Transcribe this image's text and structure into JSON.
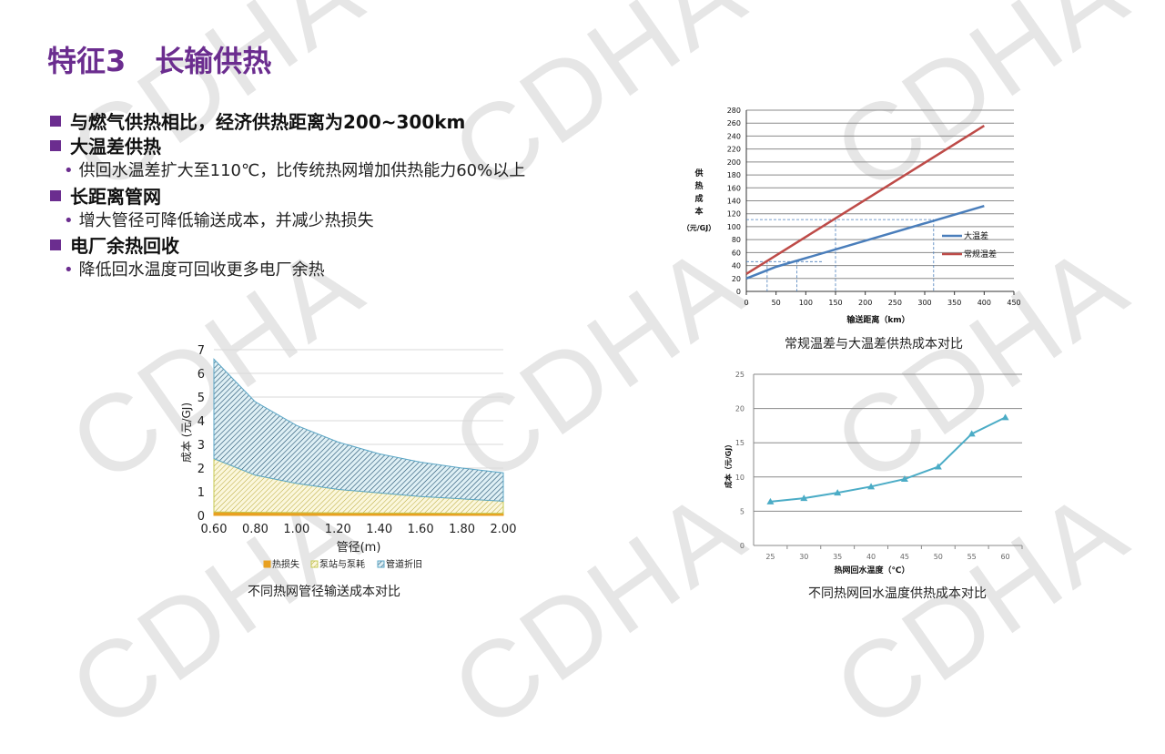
{
  "watermark": "CDHA",
  "title": "特征3　长输供热",
  "bullets": [
    {
      "text": "与燃气供热相比，经济供热距离为200~300km",
      "subs": []
    },
    {
      "text": "大温差供热",
      "subs": [
        "供回水温差扩大至110℃，比传统热网增加供热能力60%以上"
      ]
    },
    {
      "text": "长距离管网",
      "subs": [
        "增大管径可降低输送成本，并减少热损失"
      ]
    },
    {
      "text": "电厂余热回收",
      "subs": [
        "降低回水温度可回收更多电厂余热"
      ]
    }
  ],
  "colors": {
    "accent": "#6b2d8f",
    "blue": "#4a7ebb",
    "red": "#be4b48",
    "teal": "#4bacc6"
  },
  "chart_data": [
    {
      "type": "line",
      "title": "常规温差与大温差供热成本对比",
      "xlabel": "输送距离（km）",
      "ylabel": "供热成本（元/GJ）",
      "xlim": [
        0,
        450
      ],
      "ylim": [
        0,
        280
      ],
      "xticks": [
        "0",
        "50",
        "100",
        "150",
        "200",
        "250",
        "300",
        "350",
        "400",
        "450"
      ],
      "yticks": [
        "0",
        "20",
        "40",
        "60",
        "80",
        "100",
        "120",
        "140",
        "160",
        "180",
        "200",
        "220",
        "240",
        "260",
        "280"
      ],
      "series": [
        {
          "name": "大温差",
          "x": [
            0,
            50,
            400
          ],
          "y": [
            20,
            38,
            132
          ]
        },
        {
          "name": "常规温差",
          "x": [
            0,
            400
          ],
          "y": [
            27,
            256
          ]
        }
      ],
      "guides": [
        {
          "y": 111,
          "x": [
            150,
            315
          ]
        },
        {
          "y": 46,
          "x": [
            35,
            85
          ]
        }
      ]
    },
    {
      "type": "area",
      "title": "不同热网管径输送成本对比",
      "xlabel": "管径(m)",
      "ylabel": "成本 (元/GJ)",
      "ylim": [
        0,
        7
      ],
      "categories": [
        "0.60",
        "0.80",
        "1.00",
        "1.20",
        "1.40",
        "1.60",
        "1.80",
        "2.00"
      ],
      "yticks": [
        "0",
        "1",
        "2",
        "3",
        "4",
        "5",
        "6",
        "7"
      ],
      "series": [
        {
          "name": "热损失",
          "values": [
            0.15,
            0.13,
            0.12,
            0.11,
            0.1,
            0.1,
            0.09,
            0.09
          ]
        },
        {
          "name": "泵站与泵耗",
          "values": [
            2.25,
            1.57,
            1.23,
            0.99,
            0.85,
            0.7,
            0.61,
            0.51
          ]
        },
        {
          "name": "管道折旧",
          "values": [
            4.2,
            3.1,
            2.45,
            2.0,
            1.65,
            1.45,
            1.3,
            1.2
          ]
        }
      ]
    },
    {
      "type": "line",
      "title": "不同热网回水温度供热成本对比",
      "xlabel": "热网回水温度（℃）",
      "ylabel": "成本（元/GJ）",
      "ylim": [
        0,
        25
      ],
      "categories": [
        "25",
        "30",
        "35",
        "40",
        "45",
        "50",
        "55",
        "60"
      ],
      "yticks": [
        "0",
        "5",
        "10",
        "15",
        "20",
        "25"
      ],
      "values": [
        6.4,
        6.9,
        7.7,
        8.6,
        9.7,
        11.5,
        16.3,
        18.7
      ]
    }
  ]
}
